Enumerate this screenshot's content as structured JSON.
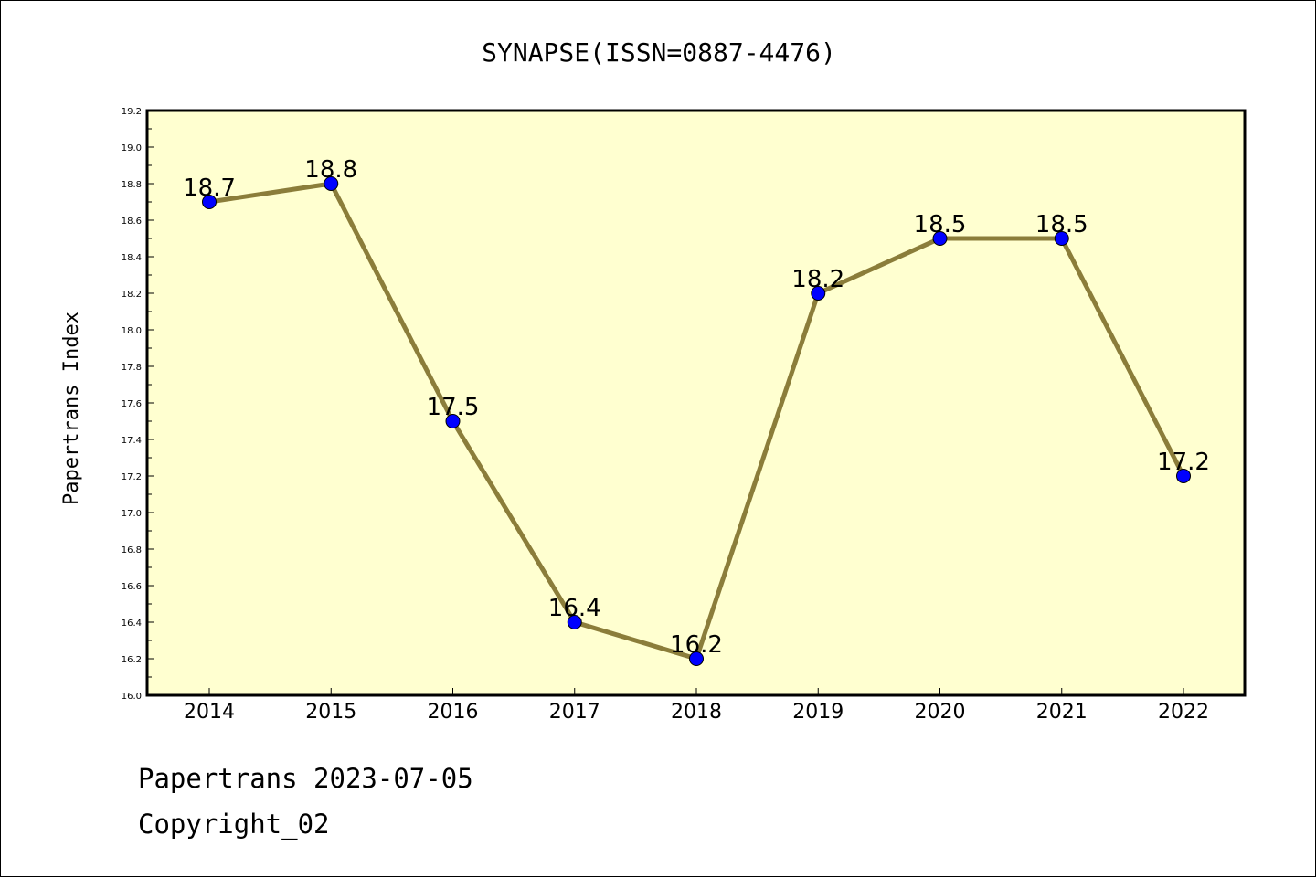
{
  "chart_data": {
    "type": "line",
    "title": "SYNAPSE(ISSN=0887-4476)",
    "xlabel": "",
    "ylabel": "Papertrans Index",
    "categories": [
      "2014",
      "2015",
      "2016",
      "2017",
      "2018",
      "2019",
      "2020",
      "2021",
      "2022"
    ],
    "series": [
      {
        "values": [
          18.7,
          18.8,
          17.5,
          16.4,
          16.2,
          18.2,
          18.5,
          18.5,
          17.2
        ]
      }
    ],
    "data_labels": [
      "18.7",
      "18.8",
      "17.5",
      "16.4",
      "16.2",
      "18.2",
      "18.5",
      "18.5",
      "17.2"
    ],
    "ylim": [
      16.0,
      19.2
    ],
    "yticks": [
      "16.0",
      "16.2",
      "16.4",
      "16.6",
      "16.8",
      "17.0",
      "17.2",
      "17.4",
      "17.6",
      "17.8",
      "18.0",
      "18.2",
      "18.4",
      "18.6",
      "18.8",
      "19.0",
      "19.2"
    ],
    "grid": false,
    "legend": "none",
    "colors": {
      "plot_background": "#FFFFD0",
      "line": "#8B7D3A",
      "marker": "#0000FF"
    }
  },
  "footer": {
    "line1": "Papertrans 2023-07-05",
    "line2": "Copyright_02"
  }
}
